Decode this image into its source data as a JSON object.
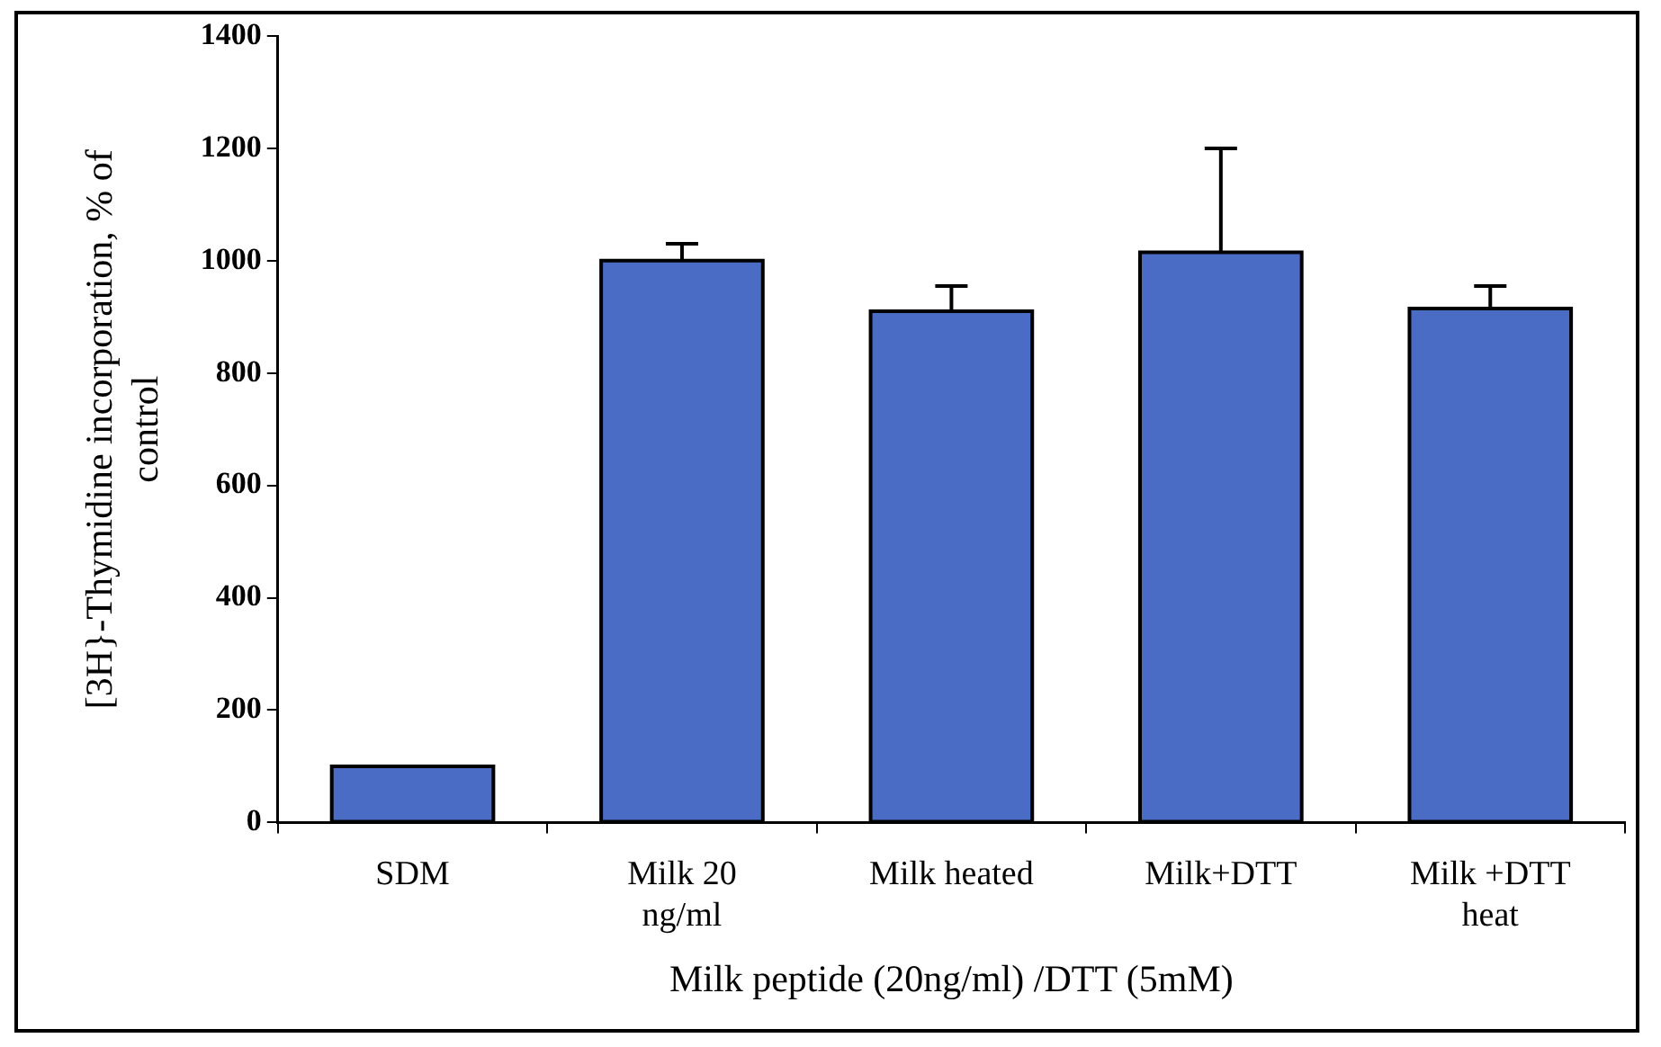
{
  "chart_data": {
    "type": "bar",
    "xlabel": "Milk peptide (20ng/ml) /DTT (5mM)",
    "ylabel": "[3H}-Thymidine incorporation, % of control",
    "categories": [
      "SDM",
      "Milk 20 ng/ml",
      "Milk heated",
      "Milk+DTT",
      "Milk +DTT heat"
    ],
    "values": [
      100,
      1000,
      910,
      1015,
      915
    ],
    "errors": [
      null,
      [
        1000,
        1030
      ],
      [
        910,
        955
      ],
      [
        1015,
        1200
      ],
      [
        915,
        955
      ]
    ],
    "color": "#4a6cc4",
    "ylim": [
      0,
      1400
    ],
    "yticks": [
      0,
      200,
      400,
      600,
      800,
      1000,
      1200,
      1400
    ],
    "grid": false,
    "legend": false
  }
}
